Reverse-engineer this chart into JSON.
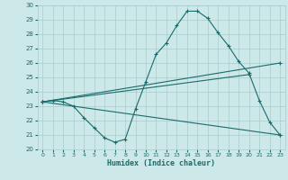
{
  "xlabel": "Humidex (Indice chaleur)",
  "bg_color": "#cce8e8",
  "grid_color": "#aacccc",
  "line_color": "#1a6b6b",
  "xlim": [
    -0.5,
    23.5
  ],
  "ylim": [
    20,
    30
  ],
  "xticks": [
    0,
    1,
    2,
    3,
    4,
    5,
    6,
    7,
    8,
    9,
    10,
    11,
    12,
    13,
    14,
    15,
    16,
    17,
    18,
    19,
    20,
    21,
    22,
    23
  ],
  "yticks": [
    20,
    21,
    22,
    23,
    24,
    25,
    26,
    27,
    28,
    29,
    30
  ],
  "series": [
    {
      "x": [
        0,
        1,
        2,
        3,
        4,
        5,
        6,
        7,
        8,
        9,
        10,
        11,
        12,
        13,
        14,
        15,
        16,
        17,
        18,
        19,
        20,
        21,
        22,
        23
      ],
      "y": [
        23.3,
        23.4,
        23.3,
        23.0,
        22.2,
        21.5,
        20.8,
        20.5,
        20.7,
        22.8,
        24.7,
        26.6,
        27.4,
        28.6,
        29.6,
        29.6,
        29.1,
        28.1,
        27.2,
        26.1,
        25.3,
        23.4,
        21.9,
        21.0
      ]
    },
    {
      "x": [
        0,
        23
      ],
      "y": [
        23.3,
        26.0
      ]
    },
    {
      "x": [
        0,
        20
      ],
      "y": [
        23.3,
        25.2
      ]
    },
    {
      "x": [
        0,
        23
      ],
      "y": [
        23.3,
        21.0
      ]
    }
  ]
}
